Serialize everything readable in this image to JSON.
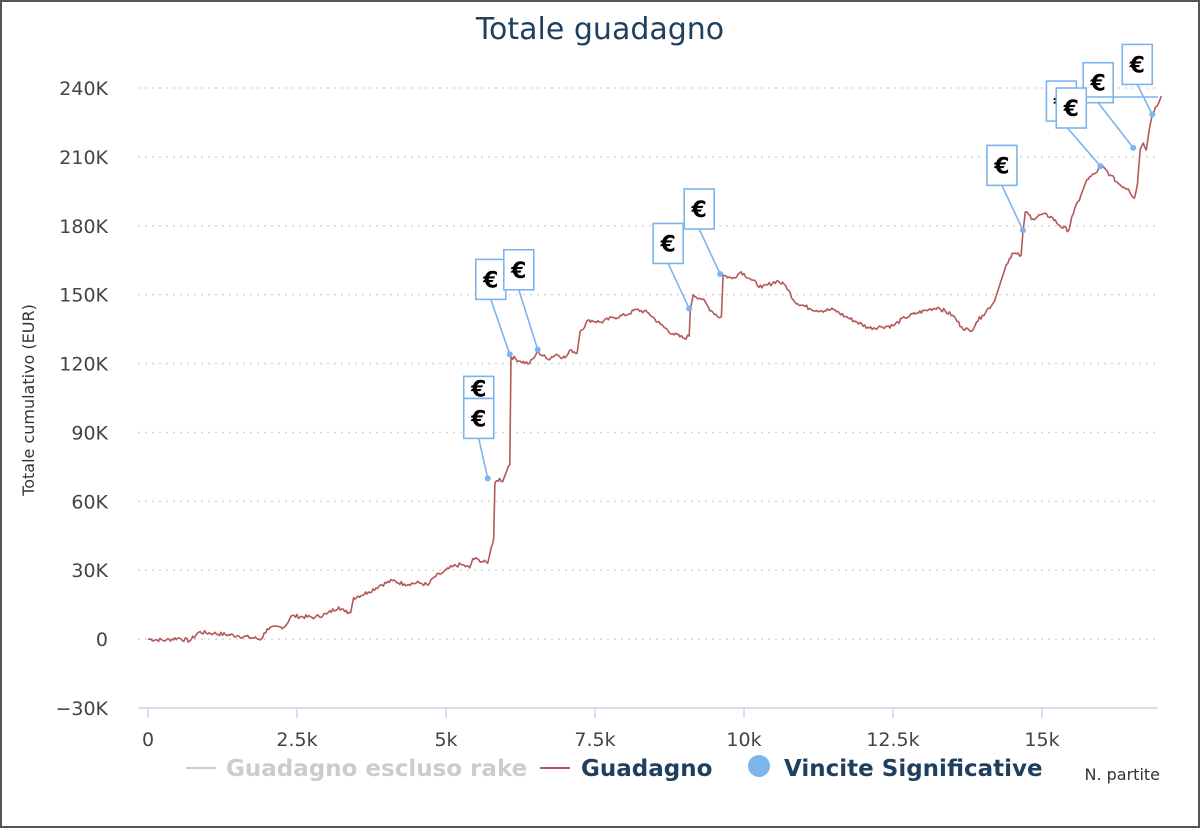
{
  "chart_data": {
    "type": "line",
    "title": "Totale guadagno",
    "ylabel": "Totale cumulativo (EUR)",
    "xlabel": "N. partite",
    "xlim": [
      0,
      17000
    ],
    "ylim": [
      -30000,
      240000
    ],
    "x_ticks": [
      0,
      2500,
      5000,
      7500,
      10000,
      12500,
      15000
    ],
    "x_tick_labels": [
      "0",
      "2.5k",
      "5k",
      "7.5k",
      "10k",
      "12.5k",
      "15k"
    ],
    "y_ticks": [
      -30000,
      0,
      30000,
      60000,
      90000,
      120000,
      150000,
      180000,
      210000,
      240000
    ],
    "y_tick_labels": [
      "−30K",
      "0",
      "30K",
      "60K",
      "90K",
      "120K",
      "150K",
      "180K",
      "210K",
      "240K"
    ],
    "grid": "horizontal dotted",
    "legend_position": "bottom",
    "series": [
      {
        "name": "Guadagno escluso rake",
        "visible": false,
        "color": "#cccccc"
      },
      {
        "name": "Guadagno",
        "color": "#b5585a",
        "points": [
          [
            0,
            0
          ],
          [
            300,
            -500
          ],
          [
            500,
            500
          ],
          [
            700,
            -800
          ],
          [
            850,
            3000
          ],
          [
            1100,
            2500
          ],
          [
            1500,
            1500
          ],
          [
            1900,
            0
          ],
          [
            2000,
            4500
          ],
          [
            2300,
            5500
          ],
          [
            2400,
            10000
          ],
          [
            2800,
            9500
          ],
          [
            3000,
            11000
          ],
          [
            3200,
            14000
          ],
          [
            3300,
            12000
          ],
          [
            3400,
            11500
          ],
          [
            3450,
            18000
          ],
          [
            3700,
            20500
          ],
          [
            3900,
            23500
          ],
          [
            4100,
            25500
          ],
          [
            4300,
            24000
          ],
          [
            4550,
            24500
          ],
          [
            4700,
            23500
          ],
          [
            4800,
            27000
          ],
          [
            4950,
            29000
          ],
          [
            5100,
            31500
          ],
          [
            5250,
            32500
          ],
          [
            5400,
            31000
          ],
          [
            5450,
            35000
          ],
          [
            5550,
            34500
          ],
          [
            5700,
            33000
          ],
          [
            5760,
            40000
          ],
          [
            5800,
            44000
          ],
          [
            5820,
            68000
          ],
          [
            5900,
            70000
          ],
          [
            5950,
            68500
          ],
          [
            6000,
            72000
          ],
          [
            6040,
            75000
          ],
          [
            6070,
            76000
          ],
          [
            6090,
            123000
          ],
          [
            6250,
            121000
          ],
          [
            6400,
            120000
          ],
          [
            6500,
            123500
          ],
          [
            6550,
            125000
          ],
          [
            6700,
            122000
          ],
          [
            6850,
            124000
          ],
          [
            7000,
            122500
          ],
          [
            7100,
            126000
          ],
          [
            7200,
            124500
          ],
          [
            7250,
            134000
          ],
          [
            7400,
            139000
          ],
          [
            7600,
            138000
          ],
          [
            7800,
            140000
          ],
          [
            8000,
            141000
          ],
          [
            8200,
            143500
          ],
          [
            8400,
            142000
          ],
          [
            8600,
            137000
          ],
          [
            8800,
            133000
          ],
          [
            9000,
            131000
          ],
          [
            9080,
            132000
          ],
          [
            9100,
            144000
          ],
          [
            9150,
            150000
          ],
          [
            9300,
            148000
          ],
          [
            9450,
            143000
          ],
          [
            9600,
            140000
          ],
          [
            9620,
            140500
          ],
          [
            9650,
            158500
          ],
          [
            9800,
            157000
          ],
          [
            9950,
            160000
          ],
          [
            10100,
            157000
          ],
          [
            10300,
            153000
          ],
          [
            10550,
            156000
          ],
          [
            10700,
            154000
          ],
          [
            10850,
            147000
          ],
          [
            11100,
            144000
          ],
          [
            11300,
            143000
          ],
          [
            11500,
            143500
          ],
          [
            11700,
            140500
          ],
          [
            11900,
            138000
          ],
          [
            12100,
            135500
          ],
          [
            12300,
            136000
          ],
          [
            12500,
            136500
          ],
          [
            12700,
            140000
          ],
          [
            12900,
            142000
          ],
          [
            13100,
            143500
          ],
          [
            13250,
            144500
          ],
          [
            13500,
            141000
          ],
          [
            13650,
            136000
          ],
          [
            13800,
            134000
          ],
          [
            13900,
            138000
          ],
          [
            14000,
            141000
          ],
          [
            14200,
            147000
          ],
          [
            14300,
            155000
          ],
          [
            14400,
            163000
          ],
          [
            14500,
            168000
          ],
          [
            14650,
            167000
          ],
          [
            14680,
            177000
          ],
          [
            14720,
            186000
          ],
          [
            14850,
            183000
          ],
          [
            15000,
            185000
          ],
          [
            15150,
            184000
          ],
          [
            15300,
            180000
          ],
          [
            15450,
            178000
          ],
          [
            15500,
            184000
          ],
          [
            15650,
            193000
          ],
          [
            15750,
            200000
          ],
          [
            15900,
            203000
          ],
          [
            16000,
            206000
          ],
          [
            16150,
            202000
          ],
          [
            16300,
            198000
          ],
          [
            16450,
            196000
          ],
          [
            16550,
            192000
          ],
          [
            16600,
            198000
          ],
          [
            16650,
            213500
          ],
          [
            16700,
            216000
          ],
          [
            16750,
            213000
          ],
          [
            16800,
            222000
          ],
          [
            16850,
            228500
          ],
          [
            17000,
            236500
          ]
        ]
      },
      {
        "name": "Vincite Significative",
        "color": "#7cb5ec",
        "type": "scatter",
        "marker_label": "€",
        "points": [
          [
            5700,
            70000
          ],
          [
            6070,
            124000
          ],
          [
            6540,
            126000
          ],
          [
            9080,
            144000
          ],
          [
            9600,
            159000
          ],
          [
            14680,
            178000
          ],
          [
            15980,
            206000
          ],
          [
            16530,
            214000
          ],
          [
            16850,
            228500
          ]
        ]
      }
    ]
  }
}
